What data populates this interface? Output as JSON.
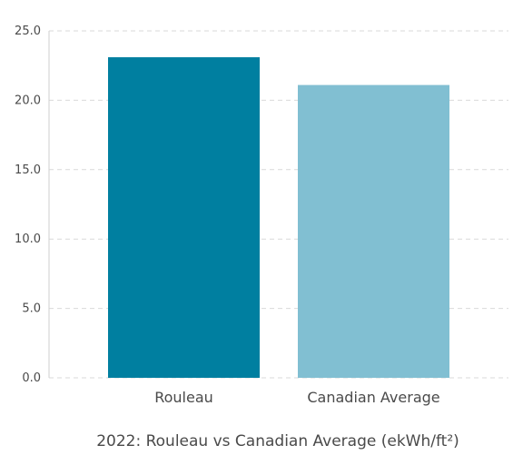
{
  "chart_data": {
    "type": "bar",
    "categories": [
      "Rouleau",
      "Canadian Average"
    ],
    "values": [
      23.1,
      21.1
    ],
    "colors": [
      "#007fa0",
      "#81bfd2"
    ],
    "caption": "2022: Rouleau vs Canadian Average (ekWh/ft²)",
    "ylim": [
      0,
      25
    ],
    "yticks": [
      "0.0",
      "5.0",
      "10.0",
      "15.0",
      "20.0",
      "25.0"
    ],
    "ytick_values": [
      0,
      5,
      10,
      15,
      20,
      25
    ],
    "grid": true,
    "legend": "none"
  }
}
